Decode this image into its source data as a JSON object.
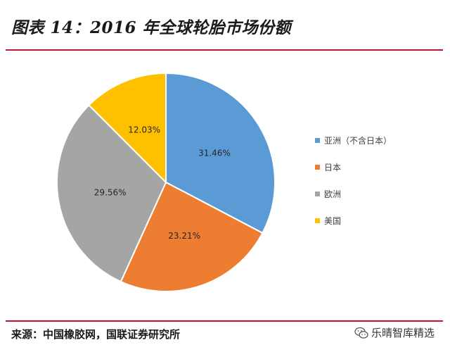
{
  "header": {
    "title": "图表 14：2016 年全球轮胎市场份额"
  },
  "chart_data": {
    "type": "pie",
    "title": "",
    "start_angle_deg": 0,
    "direction": "clockwise",
    "slices": [
      {
        "name": "亚洲（不含日本）",
        "value": 31.46,
        "label": "31.46%",
        "color": "#5b9bd5"
      },
      {
        "name": "日本",
        "value": 23.21,
        "label": "23.21%",
        "color": "#ed7d31"
      },
      {
        "name": "欧洲",
        "value": 29.56,
        "label": "29.56%",
        "color": "#a5a5a5"
      },
      {
        "name": "美国",
        "value": 12.03,
        "label": "12.03%",
        "color": "#ffc000"
      }
    ],
    "legend_position": "right"
  },
  "footer": {
    "source": "来源：中国橡胶网，国联证券研究所",
    "watermark": "乐晴智库精选",
    "watermark_icon": "wechat-icon"
  }
}
